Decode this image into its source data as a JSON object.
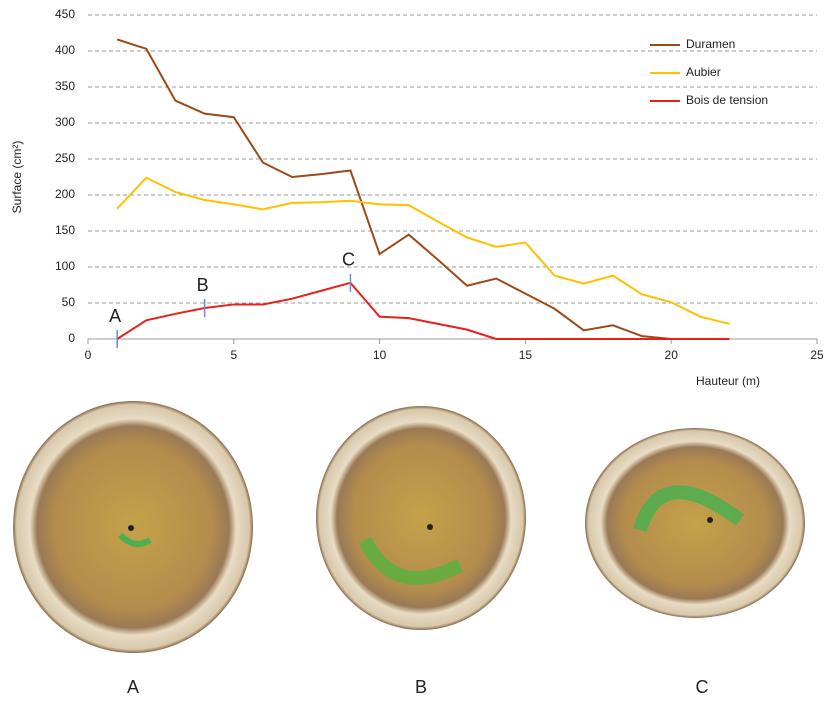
{
  "chart_data": {
    "type": "line",
    "xlabel": "Hauteur (m)",
    "ylabel": "Surface (cm²)",
    "x": [
      1,
      2,
      3,
      4,
      5,
      6,
      7,
      8,
      9,
      10,
      11,
      12,
      13,
      14,
      15,
      16,
      17,
      18,
      19,
      20,
      21,
      22
    ],
    "series": [
      {
        "name": "Duramen",
        "color": "#9c4a1a",
        "values": [
          416,
          403,
          331,
          313,
          308,
          245,
          225,
          229,
          234,
          118,
          145,
          110,
          74,
          84,
          63,
          42,
          12,
          19,
          4,
          0,
          null,
          null
        ]
      },
      {
        "name": "Aubier",
        "color": "#ffc000",
        "values": [
          181,
          224,
          204,
          193,
          187,
          180,
          189,
          190,
          192,
          187,
          186,
          163,
          141,
          128,
          134,
          88,
          77,
          88,
          62,
          51,
          31,
          21
        ]
      },
      {
        "name": "Bois de tension",
        "color": "#e8201c",
        "values": [
          0,
          26,
          35,
          43,
          48,
          48,
          56,
          67,
          78,
          31,
          29,
          21,
          13,
          0,
          0,
          0,
          0,
          0,
          0,
          0,
          0,
          0
        ]
      }
    ],
    "xlim": [
      0,
      25
    ],
    "xticks": [
      0,
      5,
      10,
      15,
      20,
      25
    ],
    "ylim": [
      0,
      450
    ],
    "yticks": [
      0,
      50,
      100,
      150,
      200,
      250,
      300,
      350,
      400,
      450
    ],
    "grid": true,
    "legend": "top-right",
    "annotations": [
      {
        "label": "A",
        "x": 1
      },
      {
        "label": "B",
        "x": 4
      },
      {
        "label": "C",
        "x": 9
      }
    ]
  },
  "photos": [
    "A",
    "B",
    "C"
  ]
}
